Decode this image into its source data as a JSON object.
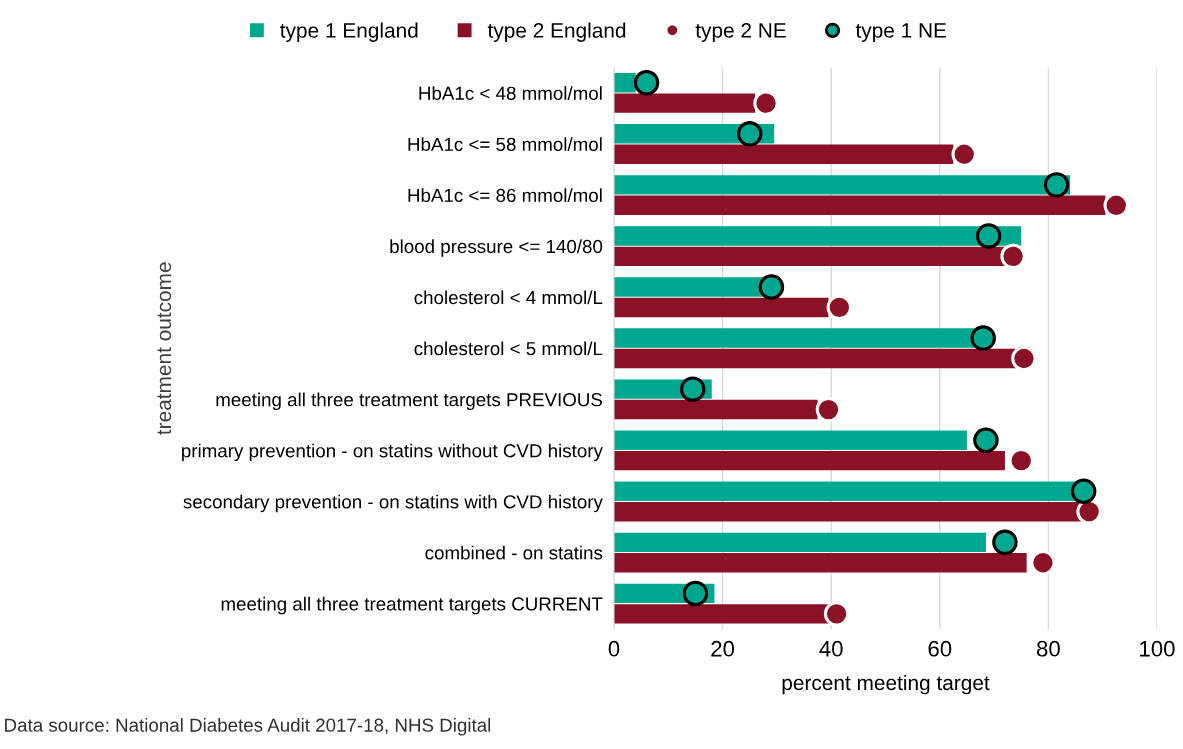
{
  "chart_data": {
    "type": "bar",
    "orientation": "horizontal",
    "categories": [
      "HbA1c < 48 mmol/mol",
      "HbA1c <= 58 mmol/mol",
      "HbA1c <= 86 mmol/mol",
      "blood pressure <= 140/80",
      "cholesterol < 4 mmol/L",
      "cholesterol < 5 mmol/L",
      "meeting all three treatment targets PREVIOUS",
      "primary prevention - on statins without CVD history",
      "secondary prevention - on statins with CVD history",
      "combined - on statins",
      "meeting all three treatment targets CURRENT"
    ],
    "series": [
      {
        "name": "type 1 England",
        "color": "#00a88f",
        "values": [
          4,
          29.5,
          84,
          75,
          28,
          67,
          18,
          65,
          85.5,
          68.5,
          18.5
        ]
      },
      {
        "name": "type 2 England",
        "color": "#8b1126",
        "values": [
          26,
          62.5,
          90.5,
          72,
          39.5,
          74,
          37.5,
          72,
          86,
          76,
          39.5
        ]
      },
      {
        "name": "type 2 NE",
        "type": "scatter",
        "marker": "circle",
        "color": "#8b1126",
        "values": [
          28,
          64.5,
          92.5,
          73.5,
          41.5,
          75.5,
          39.5,
          75,
          87.5,
          79,
          41
        ]
      },
      {
        "name": "type 1 NE",
        "type": "scatter",
        "marker": "circle",
        "color": "#00a88f",
        "values": [
          6,
          25,
          81.5,
          69,
          29,
          68,
          14.5,
          68.5,
          86.5,
          72,
          15
        ]
      }
    ],
    "xlim": [
      0,
      100
    ],
    "xticks": [
      0,
      20,
      40,
      60,
      80,
      100
    ],
    "xlabel": "percent meeting target",
    "ylabel": "treatment outcome",
    "grid": "x",
    "legend": "top",
    "annotations": [
      "Data source: National Diabetes Audit 2017-18, NHS Digital"
    ]
  }
}
